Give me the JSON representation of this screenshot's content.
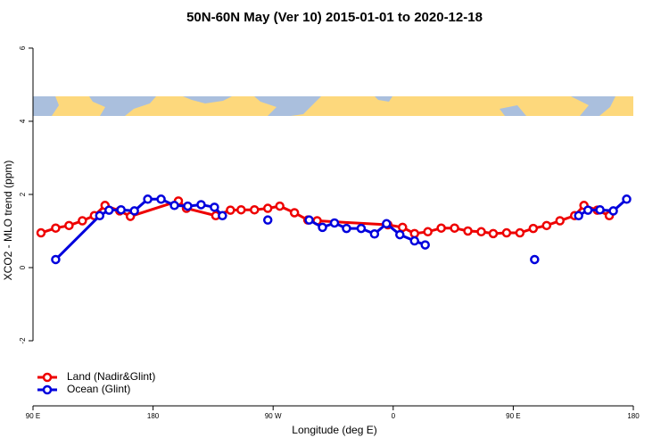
{
  "chart_data": {
    "type": "line",
    "title": "50N-60N May (Ver 10)   2015-01-01 to 2020-12-18",
    "x_label": "Longitude (deg E)",
    "y_label": "XCO2 - MLO trend (ppm)",
    "xlim": [
      90,
      540
    ],
    "xticks": [
      {
        "value": 90,
        "label": "90 E"
      },
      {
        "value": 180,
        "label": "180"
      },
      {
        "value": 270,
        "label": "90 W"
      },
      {
        "value": 360,
        "label": "0"
      },
      {
        "value": 450,
        "label": "90 E"
      },
      {
        "value": 540,
        "label": "180"
      }
    ],
    "ylim": [
      -3.78,
      6.34
    ],
    "yticks": [
      -2,
      0,
      2,
      4,
      6
    ],
    "legend": "bottom-left",
    "series": [
      {
        "name": "Land (Nadir&Glint)",
        "color": "#ee0000",
        "x": [
          96,
          107,
          117,
          127,
          136,
          144,
          155,
          163,
          199,
          205,
          227,
          238,
          246,
          256,
          266,
          275,
          286,
          296,
          303,
          356,
          367,
          376,
          386,
          396,
          406,
          416,
          426,
          435,
          445,
          455,
          465,
          475,
          485,
          496,
          503,
          513,
          522
        ],
        "values": [
          0.95,
          1.08,
          1.15,
          1.28,
          1.42,
          1.7,
          1.55,
          1.4,
          1.82,
          1.62,
          1.42,
          1.57,
          1.58,
          1.58,
          1.62,
          1.68,
          1.5,
          1.3,
          1.28,
          1.17,
          1.1,
          0.93,
          0.98,
          1.08,
          1.08,
          1.0,
          0.98,
          0.93,
          0.95,
          0.95,
          1.07,
          1.15,
          1.28,
          1.42,
          1.7,
          1.57,
          1.42
        ]
      },
      {
        "name": "Ocean (Glint)",
        "color": "#0000dd",
        "x": [
          107,
          140,
          147,
          156,
          166,
          176,
          186,
          196,
          206,
          216,
          226,
          232,
          null,
          266,
          null,
          297,
          307,
          316,
          325,
          336,
          346,
          355,
          365,
          376,
          384,
          null,
          466,
          null,
          499,
          506,
          515,
          525,
          535
        ],
        "values": [
          0.22,
          1.42,
          1.57,
          1.58,
          1.55,
          1.87,
          1.87,
          1.7,
          1.68,
          1.72,
          1.65,
          1.42,
          null,
          1.3,
          null,
          1.3,
          1.1,
          1.22,
          1.07,
          1.07,
          0.92,
          1.2,
          0.9,
          0.73,
          0.62,
          null,
          0.22,
          null,
          1.42,
          1.57,
          1.58,
          1.55,
          1.87
        ]
      }
    ]
  }
}
